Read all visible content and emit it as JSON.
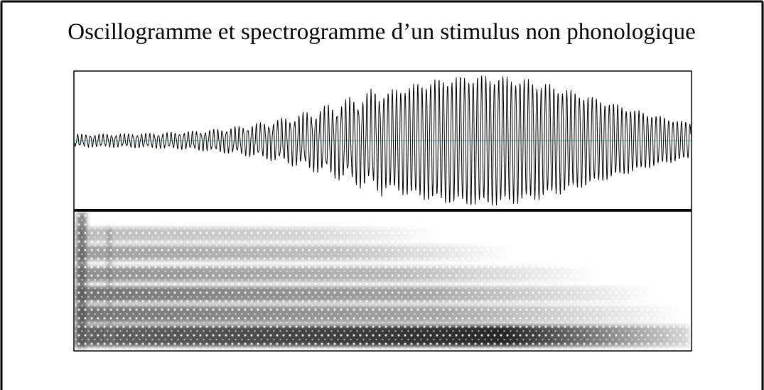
{
  "title": "Oscillogramme et spectrogramme d’un stimulus non phonologique"
}
